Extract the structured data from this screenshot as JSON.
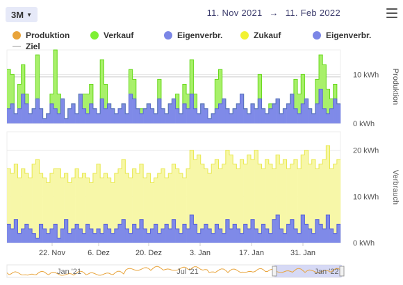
{
  "toolbar": {
    "range_label": "3M",
    "date_from": "11. Nov 2021",
    "date_to": "11. Feb 2022",
    "arrow": "→"
  },
  "legend": [
    {
      "name": "Produktion",
      "color": "#e8a33a",
      "shape": "dot"
    },
    {
      "name": "Verkauf",
      "color": "#7ef033",
      "shape": "dot"
    },
    {
      "name": "Eigenverbr.",
      "color": "#7b86e6",
      "shape": "dot"
    },
    {
      "name": "Zukauf",
      "color": "#f2f233",
      "shape": "dot"
    },
    {
      "name": "Eigenverbr.",
      "color": "#7b86e6",
      "shape": "dot"
    },
    {
      "name": "Ziel",
      "color": "#cccccc",
      "shape": "line"
    }
  ],
  "colors": {
    "verkauf": "#a8f06a",
    "verkauf_line": "#66d81a",
    "eigen": "#7f8ae8",
    "eigen_line": "#5a64d8",
    "zukauf": "#f7f7a8",
    "zukauf_line": "#e8e84a",
    "produktion": "#e8a33a",
    "grid": "#e6e6e6"
  },
  "chart_data": [
    {
      "type": "bar",
      "title": "",
      "ylabel": "Produktion",
      "ylim": [
        0,
        15
      ],
      "yticks": [
        "0 kWh",
        "10 kWh"
      ],
      "x_range": [
        "2021-11-11",
        "2022-02-11"
      ],
      "series": [
        {
          "name": "Eigenverbr.",
          "values": [
            3,
            4,
            2,
            3,
            6,
            4,
            2,
            3,
            5,
            3,
            1,
            2,
            4,
            3,
            2,
            5,
            1,
            3,
            4,
            2,
            6,
            3,
            2,
            4,
            3,
            2,
            5,
            3,
            4,
            3,
            2,
            3,
            4,
            2,
            6,
            5,
            3,
            2,
            3,
            4,
            3,
            2,
            5,
            3,
            2,
            4,
            5,
            3,
            2,
            4,
            3,
            6,
            3,
            2,
            4,
            3,
            1,
            2,
            3,
            4,
            5,
            3,
            2,
            3,
            4,
            6,
            3,
            2,
            4,
            3,
            5,
            3,
            2,
            3,
            4,
            5,
            2,
            3,
            4,
            6,
            3,
            2,
            4,
            5,
            3,
            2,
            4,
            7,
            3,
            2,
            3,
            5,
            4
          ]
        },
        {
          "name": "Verkauf",
          "values": [
            8,
            6,
            0,
            5,
            6,
            2,
            0,
            0,
            9,
            0,
            0,
            0,
            2,
            12,
            4,
            0,
            0,
            0,
            0,
            0,
            0,
            3,
            4,
            4,
            0,
            0,
            8,
            5,
            0,
            0,
            0,
            0,
            0,
            0,
            5,
            4,
            0,
            1,
            0,
            0,
            0,
            0,
            4,
            0,
            0,
            0,
            0,
            3,
            0,
            4,
            3,
            7,
            3,
            0,
            0,
            0,
            0,
            0,
            6,
            7,
            0,
            0,
            0,
            0,
            0,
            0,
            0,
            0,
            0,
            0,
            5,
            0,
            0,
            1,
            0,
            0,
            0,
            0,
            0,
            0,
            6,
            4,
            6,
            0,
            0,
            0,
            5,
            7,
            9,
            5,
            2,
            3,
            0
          ]
        }
      ]
    },
    {
      "type": "area",
      "ylabel": "Verbrauch",
      "ylim": [
        0,
        24
      ],
      "yticks": [
        "0 kWh",
        "10 kWh",
        "20 kWh"
      ],
      "series": [
        {
          "name": "Zukauf",
          "values": [
            16,
            15,
            17,
            14,
            16,
            15,
            14,
            17,
            18,
            15,
            14,
            13,
            15,
            16,
            16,
            14,
            15,
            13,
            14,
            16,
            14,
            15,
            14,
            13,
            15,
            17,
            14,
            15,
            14,
            13,
            15,
            16,
            18,
            15,
            14,
            16,
            15,
            17,
            14,
            15,
            13,
            14,
            15,
            16,
            14,
            15,
            17,
            16,
            15,
            14,
            16,
            20,
            18,
            19,
            17,
            16,
            15,
            17,
            18,
            16,
            17,
            20,
            19,
            17,
            16,
            18,
            17,
            19,
            18,
            20,
            17,
            16,
            18,
            17,
            16,
            19,
            17,
            18,
            16,
            17,
            18,
            16,
            19,
            20,
            17,
            18,
            16,
            17,
            18,
            21,
            16,
            17,
            18
          ]
        },
        {
          "name": "Eigenverbr.",
          "values": [
            4,
            3,
            5,
            2,
            3,
            4,
            3,
            2,
            1,
            4,
            3,
            2,
            3,
            4,
            1,
            3,
            5,
            2,
            3,
            4,
            3,
            2,
            4,
            3,
            2,
            3,
            2,
            4,
            3,
            2,
            3,
            4,
            5,
            3,
            2,
            4,
            3,
            5,
            3,
            2,
            3,
            4,
            2,
            3,
            4,
            3,
            5,
            3,
            2,
            4,
            3,
            6,
            4,
            2,
            3,
            4,
            3,
            2,
            4,
            3,
            2,
            5,
            3,
            4,
            3,
            2,
            4,
            3,
            5,
            3,
            2,
            4,
            3,
            2,
            5,
            6,
            3,
            2,
            4,
            5,
            3,
            2,
            6,
            4,
            3,
            2,
            5,
            4,
            3,
            6,
            3,
            2,
            4
          ]
        }
      ],
      "xticks": [
        "22. Nov",
        "6. Dez",
        "20. Dez",
        "3. Jan",
        "17. Jan",
        "31. Jan"
      ]
    }
  ],
  "navigator": {
    "labels": [
      "Jan '21",
      "Jul '21",
      "Jan '22"
    ]
  }
}
